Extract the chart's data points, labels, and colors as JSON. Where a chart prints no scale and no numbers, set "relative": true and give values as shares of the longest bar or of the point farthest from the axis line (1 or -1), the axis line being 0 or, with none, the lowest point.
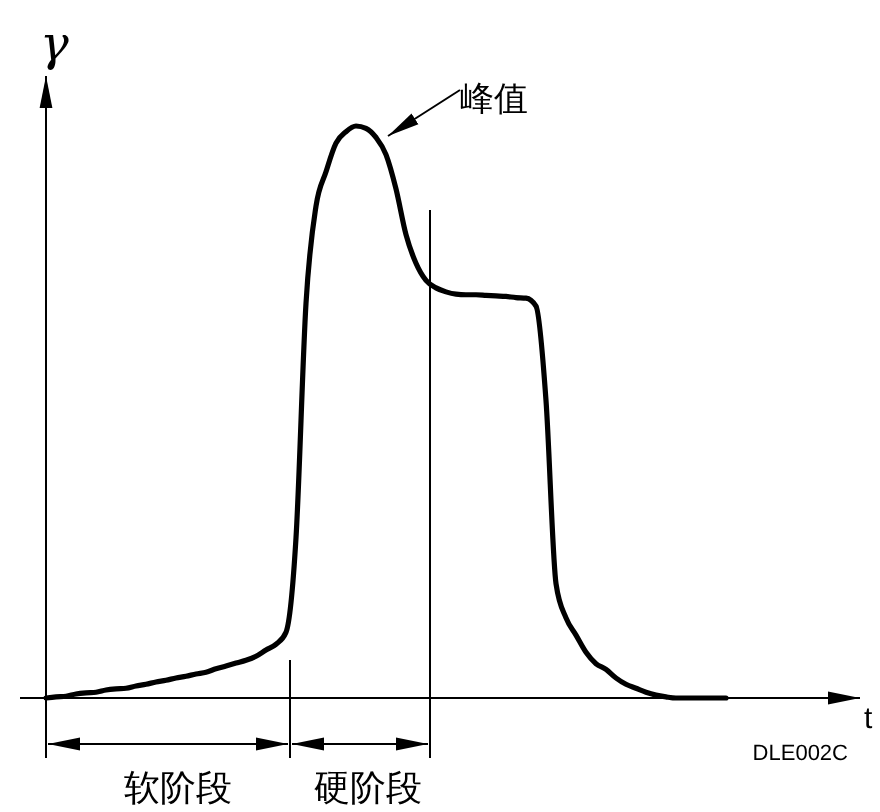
{
  "chart_data": {
    "type": "line",
    "relative": true,
    "ylabel": "γ",
    "xlabel": "t",
    "categories": [
      null,
      null,
      null,
      null,
      null,
      null,
      null,
      null,
      null,
      null,
      null,
      null,
      null,
      null,
      null,
      null,
      null,
      null,
      null,
      null,
      null,
      null,
      null,
      null,
      null,
      null,
      null,
      null,
      null,
      null,
      null,
      null,
      null,
      null,
      null,
      null,
      null,
      null,
      null,
      null,
      null,
      null,
      null,
      null,
      null,
      null,
      null,
      null,
      null,
      null,
      null,
      null,
      null,
      null,
      null,
      null,
      null,
      null,
      null,
      null,
      null,
      null,
      null,
      null,
      null,
      null,
      null,
      null,
      null
    ],
    "series": [
      {
        "color": "#000000",
        "values": [
          0,
          0.002,
          0.003,
          0.007,
          0.009,
          0.01,
          0.014,
          0.016,
          0.017,
          0.021,
          0.024,
          0.028,
          0.031,
          0.035,
          0.038,
          0.042,
          0.045,
          0.051,
          0.056,
          0.061,
          0.066,
          0.073,
          0.084,
          0.094,
          0.115,
          0.28,
          0.69,
          0.86,
          0.92,
          0.97,
          0.99,
          1,
          0.996,
          0.98,
          0.95,
          0.89,
          0.81,
          0.76,
          0.73,
          0.717,
          0.71,
          0.706,
          0.705,
          0.705,
          0.704,
          0.703,
          0.702,
          0.7,
          0.699,
          0.685,
          0.52,
          0.2,
          0.14,
          0.11,
          0.08,
          0.06,
          0.05,
          0.035,
          0.024,
          0.017,
          0.01,
          0.005,
          0.002,
          0,
          0,
          0,
          0,
          0,
          0
        ]
      }
    ],
    "marker": "none",
    "line_style": "solid",
    "annotations": [
      "峰值",
      "软阶段",
      "硬阶段",
      "DLE002C"
    ]
  }
}
